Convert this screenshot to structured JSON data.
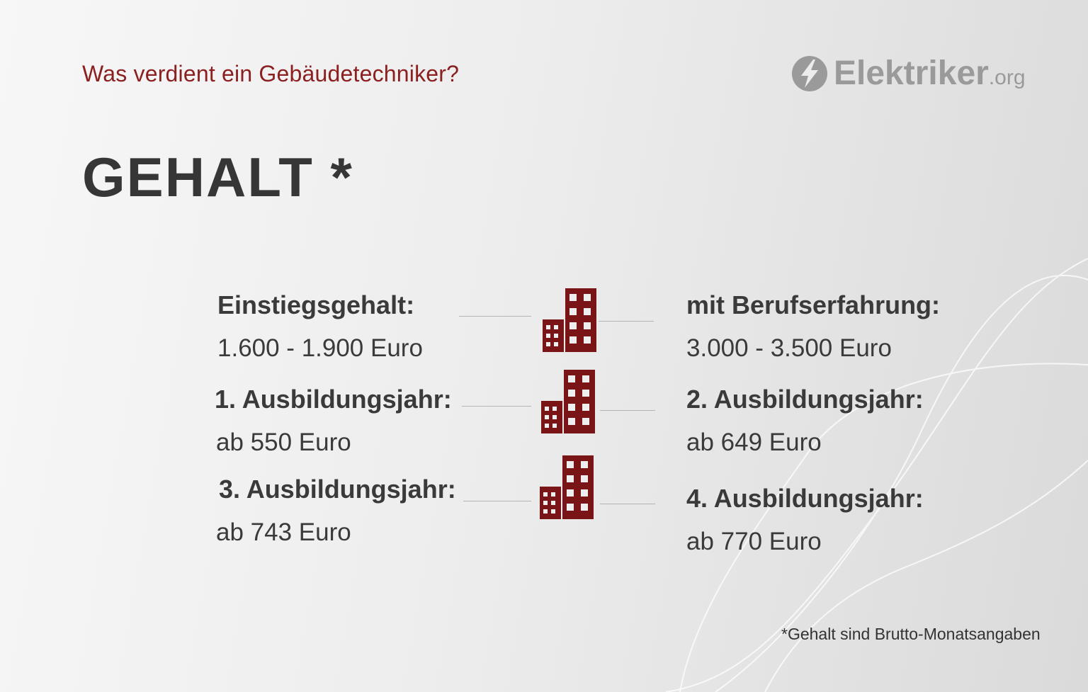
{
  "header": {
    "kicker": "Was verdient ein Gebäudetechniker?",
    "logo_main": "Elektriker",
    "logo_tld": ".org",
    "logo_icon": "lightning-bolt-icon"
  },
  "title": "GEHALT *",
  "rows": [
    {
      "left": {
        "label": "Einstiegsgehalt:",
        "value": "1.600 - 1.900 Euro"
      },
      "right": {
        "label": "mit Berufserfahrung:",
        "value": "3.000 - 3.500 Euro"
      }
    },
    {
      "left": {
        "label": "1. Ausbildungsjahr:",
        "value": "ab 550 Euro"
      },
      "right": {
        "label": "2. Ausbildungsjahr:",
        "value": "ab 649  Euro"
      }
    },
    {
      "left": {
        "label": "3. Ausbildungsjahr:",
        "value": "ab 743 Euro"
      },
      "right": {
        "label": "4. Ausbildungsjahr:",
        "value": "ab 770 Euro"
      }
    }
  ],
  "icon": "building-icon",
  "footnote": "*Gehalt sind Brutto-Monatsangaben",
  "colors": {
    "accent": "#8b2020",
    "building": "#7a1517",
    "text": "#363636",
    "logo": "#9a9a9a"
  }
}
